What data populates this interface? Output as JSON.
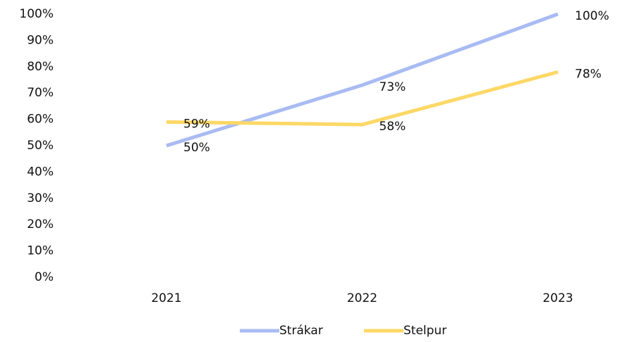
{
  "chart_data": {
    "type": "line",
    "categories": [
      "2021",
      "2022",
      "2023"
    ],
    "series": [
      {
        "name": "Strákar",
        "color": "#a9bbf3",
        "values": [
          50,
          73,
          100
        ],
        "value_labels": [
          "50%",
          "73%",
          "100%"
        ]
      },
      {
        "name": "Stelpur",
        "color": "#fdd866",
        "values": [
          59,
          58,
          78
        ],
        "value_labels": [
          "59%",
          "58%",
          "78%"
        ]
      }
    ],
    "ylim": [
      0,
      100
    ],
    "yticks": [
      {
        "value": 0,
        "label": "0%"
      },
      {
        "value": 10,
        "label": "10%"
      },
      {
        "value": 20,
        "label": "20%"
      },
      {
        "value": 30,
        "label": "30%"
      },
      {
        "value": 40,
        "label": "40%"
      },
      {
        "value": 50,
        "label": "50%"
      },
      {
        "value": 60,
        "label": "60%"
      },
      {
        "value": 70,
        "label": "70%"
      },
      {
        "value": 80,
        "label": "80%"
      },
      {
        "value": 90,
        "label": "90%"
      },
      {
        "value": 100,
        "label": "100%"
      }
    ],
    "grid": false,
    "legend": "bottom"
  }
}
